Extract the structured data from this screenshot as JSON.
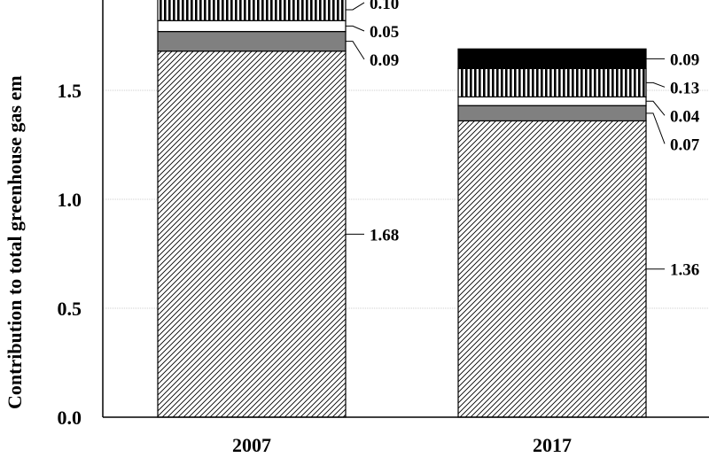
{
  "chart_data": {
    "type": "bar",
    "stacked": true,
    "categories": [
      "2007",
      "2017"
    ],
    "ylabel": "Contribution to total greenhouse gas em",
    "ylim": [
      0,
      1.9
    ],
    "yticks": [
      "0.0",
      "0.5",
      "1.0",
      "1.5"
    ],
    "grid": "horizontal",
    "series": [
      {
        "values": [
          1.68,
          1.36
        ],
        "labels": [
          "1.68",
          "1.36"
        ],
        "pattern": "diagonal-hatch"
      },
      {
        "values": [
          0.09,
          0.07
        ],
        "labels": [
          "0.09",
          "0.07"
        ],
        "pattern": "solid-gray",
        "color": "#808080"
      },
      {
        "values": [
          0.05,
          0.04
        ],
        "labels": [
          "0.05",
          "0.04"
        ],
        "pattern": "solid-white",
        "color": "#ffffff"
      },
      {
        "values": [
          0.1,
          0.13
        ],
        "labels": [
          "0.10",
          "0.13"
        ],
        "pattern": "vertical-stripes"
      },
      {
        "values": [
          0.0,
          0.09
        ],
        "labels": [
          "",
          "0.09"
        ],
        "pattern": "solid-black",
        "color": "#000000"
      }
    ]
  }
}
